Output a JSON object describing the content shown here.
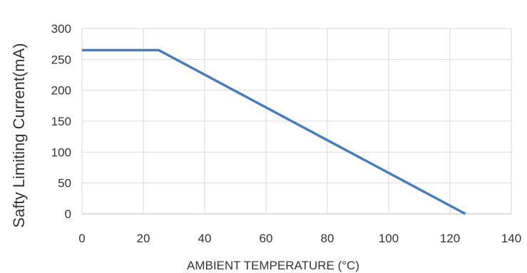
{
  "chart_data": {
    "type": "line",
    "title": "",
    "xlabel": "AMBIENT TEMPERATURE (°C)",
    "ylabel": "Safty Limiting Current(mA)",
    "xlim": [
      0,
      140
    ],
    "ylim": [
      0,
      300
    ],
    "x_ticks": [
      "0",
      "20",
      "40",
      "60",
      "80",
      "100",
      "120",
      "140"
    ],
    "y_ticks": [
      "0",
      "50",
      "100",
      "150",
      "200",
      "250",
      "300"
    ],
    "grid": true,
    "legend": "none",
    "series": [
      {
        "x": [
          0,
          25,
          125
        ],
        "y": [
          265,
          265,
          0
        ],
        "color": "#4a7ebb"
      }
    ]
  }
}
